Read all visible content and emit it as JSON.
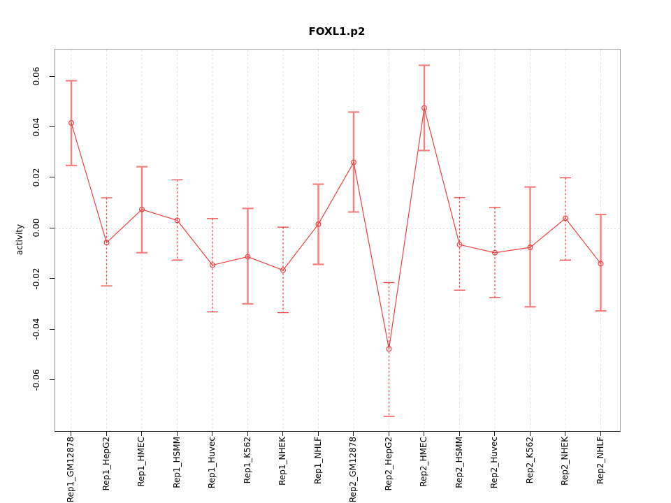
{
  "chart_data": {
    "type": "line",
    "title": "FOXL1.p2",
    "xlabel": "",
    "ylabel": "activity",
    "grid": "light dashed vertical gridline at every category; dotted horizontal line at y=0 only",
    "legend_position": "none",
    "point_marker": "open-circle",
    "ylim": [
      -0.08,
      0.0708
    ],
    "y_ticks": [
      0.06,
      0.04,
      0.02,
      0.0,
      -0.02,
      -0.04,
      -0.06
    ],
    "y_tick_labels": [
      "0.06",
      "0.04",
      "0.02",
      "0.00",
      "-0.02",
      "-0.04",
      "-0.06"
    ],
    "categories": [
      "Rep1_GM12878",
      "Rep1_HepG2",
      "Rep1_HMEC",
      "Rep1_HSMM",
      "Rep1_Huvec",
      "Rep1_K562",
      "Rep1_NHEK",
      "Rep1_NHLF",
      "Rep2_GM12878",
      "Rep2_HepG2",
      "Rep2_HMEC",
      "Rep2_HSMM",
      "Rep2_Huvec",
      "Rep2_K562",
      "Rep2_NHEK",
      "Rep2_NHLF"
    ],
    "series": [
      {
        "name": "activity",
        "values": [
          0.0418,
          -0.0055,
          0.0076,
          0.0033,
          -0.0144,
          -0.0111,
          -0.0164,
          0.0018,
          0.0262,
          -0.0475,
          0.0477,
          -0.0063,
          -0.0095,
          -0.0074,
          0.0041,
          -0.0138
        ],
        "ci_lower": [
          0.025,
          -0.0226,
          -0.0095,
          -0.0124,
          -0.0329,
          -0.0297,
          -0.0332,
          -0.0141,
          0.0066,
          -0.0742,
          0.0309,
          -0.0243,
          -0.0272,
          -0.0309,
          -0.0124,
          -0.0325
        ],
        "ci_upper": [
          0.0585,
          0.0122,
          0.0245,
          0.0193,
          0.004,
          0.008,
          0.0006,
          0.0176,
          0.0461,
          -0.0213,
          0.0646,
          0.0123,
          0.0084,
          0.0165,
          0.0201,
          0.0056
        ],
        "error_bar_styles": [
          "solid",
          "dotted",
          "solid",
          "dotted",
          "dotted",
          "solid",
          "dotted",
          "solid",
          "solid",
          "dotted",
          "solid",
          "dotted",
          "dotted",
          "solid",
          "dotted",
          "solid"
        ]
      }
    ]
  },
  "colors": {
    "series_red": "#ee4040",
    "error_bar_light_red": "#f58080",
    "gridline_gray": "#e3e3e3",
    "zero_line_gray": "#d9d9d9",
    "box_gray": "#a6a6a6",
    "axis_black": "#1c1c1c",
    "background": "#ffffff"
  }
}
